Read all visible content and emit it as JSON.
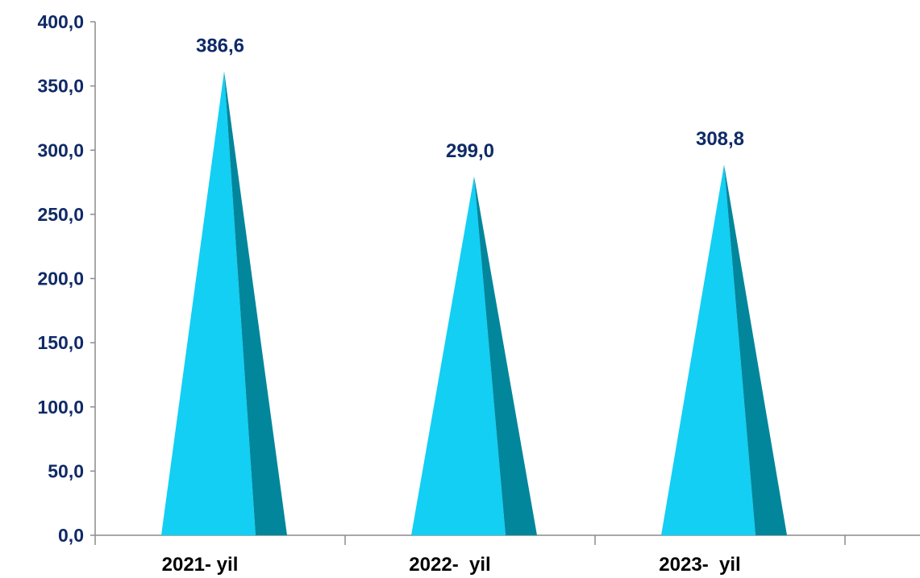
{
  "chart_data": {
    "type": "bar",
    "bar_shape": "cone",
    "categories": [
      "2021- yil",
      "2022-  yil",
      "2023-  yil"
    ],
    "values": [
      386.6,
      299.0,
      308.8
    ],
    "data_labels": [
      "386,6",
      "299,0",
      "308,8"
    ],
    "yticks": [
      "0,0",
      "50,0",
      "100,0",
      "150,0",
      "200,0",
      "250,0",
      "300,0",
      "350,0",
      "400,0"
    ],
    "ylim": [
      0,
      400
    ],
    "grid": false,
    "legend": "none",
    "colors": {
      "bar_light": "#12CFF3",
      "bar_dark": "#02869C",
      "label_text": "#0F2A66",
      "axis": "#8C8C8C"
    }
  }
}
